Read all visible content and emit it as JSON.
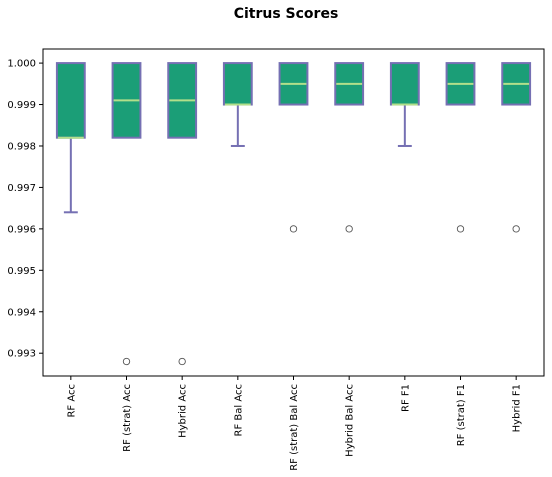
{
  "chart_data": {
    "type": "box",
    "title": "Citrus Scores",
    "xlabel": "",
    "ylabel": "",
    "ylim": [
      0.99245,
      1.00034
    ],
    "yticks": [
      "0.993",
      "0.994",
      "0.995",
      "0.996",
      "0.997",
      "0.998",
      "0.999",
      "1.000"
    ],
    "ytick_values": [
      0.993,
      0.994,
      0.995,
      0.996,
      0.997,
      0.998,
      0.999,
      1.0
    ],
    "categories": [
      "RF Acc",
      "RF (strat) Acc",
      "Hybrid Acc",
      "RF Bal Acc",
      "RF (strat) Bal Acc",
      "Hybrid Bal Acc",
      "RF F1",
      "RF (strat) F1",
      "Hybrid F1"
    ],
    "boxes": [
      {
        "q1": 0.9982,
        "median": 0.9982,
        "q3": 1.0,
        "whislo": 0.9964,
        "whishi": 1.0,
        "fliers": []
      },
      {
        "q1": 0.9982,
        "median": 0.9991,
        "q3": 1.0,
        "whislo": 0.9982,
        "whishi": 1.0,
        "fliers": [
          0.9928
        ]
      },
      {
        "q1": 0.9982,
        "median": 0.9991,
        "q3": 1.0,
        "whislo": 0.9982,
        "whishi": 1.0,
        "fliers": [
          0.9928
        ]
      },
      {
        "q1": 0.999,
        "median": 0.999,
        "q3": 1.0,
        "whislo": 0.998,
        "whishi": 1.0,
        "fliers": []
      },
      {
        "q1": 0.999,
        "median": 0.9995,
        "q3": 1.0,
        "whislo": 0.999,
        "whishi": 1.0,
        "fliers": [
          0.996
        ]
      },
      {
        "q1": 0.999,
        "median": 0.9995,
        "q3": 1.0,
        "whislo": 0.999,
        "whishi": 1.0,
        "fliers": [
          0.996
        ]
      },
      {
        "q1": 0.999,
        "median": 0.999,
        "q3": 1.0,
        "whislo": 0.998,
        "whishi": 1.0,
        "fliers": []
      },
      {
        "q1": 0.999,
        "median": 0.9995,
        "q3": 1.0,
        "whislo": 0.999,
        "whishi": 1.0,
        "fliers": [
          0.996
        ]
      },
      {
        "q1": 0.999,
        "median": 0.9995,
        "q3": 1.0,
        "whislo": 0.999,
        "whishi": 1.0,
        "fliers": [
          0.996
        ]
      }
    ],
    "colors": {
      "box_fill": "#1b9e77",
      "box_edge": "#7570b3",
      "median": "#b2df8a",
      "whisker": "#7570b3",
      "flier_edge": "#555555"
    },
    "grid": false,
    "legend": "none"
  }
}
